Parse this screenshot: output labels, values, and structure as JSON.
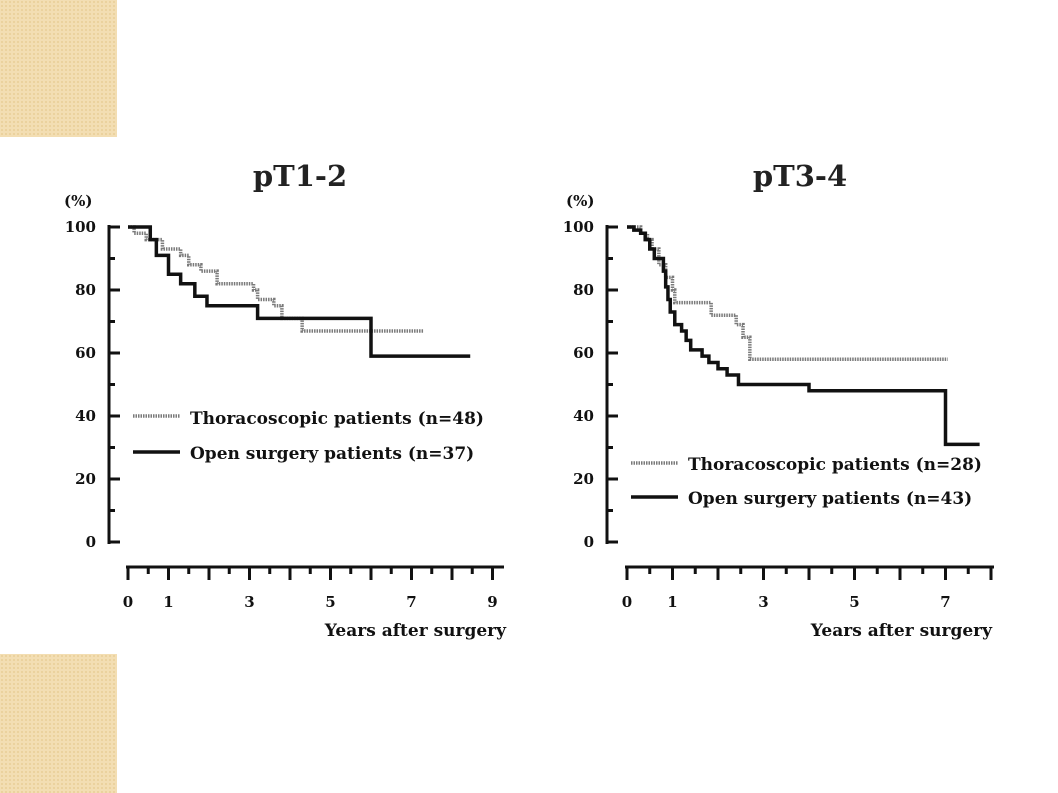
{
  "chart_data": [
    {
      "type": "line",
      "title": "pT1-2",
      "ylabel": "(%)",
      "xlabel": "Years after surgery",
      "xlim": [
        0,
        9
      ],
      "ylim": [
        0,
        100
      ],
      "xticks": [
        0,
        1,
        3,
        5,
        7,
        9
      ],
      "yticks": [
        0,
        20,
        40,
        60,
        80,
        100
      ],
      "legend_position": "center-left",
      "series": [
        {
          "name": "Thoracoscopic patients (n=48)",
          "style": "dotted-gray",
          "steps": [
            [
              0,
              100
            ],
            [
              0.15,
              98
            ],
            [
              0.45,
              96
            ],
            [
              0.85,
              93
            ],
            [
              1.3,
              91
            ],
            [
              1.5,
              88
            ],
            [
              1.8,
              86
            ],
            [
              2.2,
              82
            ],
            [
              3.1,
              80
            ],
            [
              3.2,
              77
            ],
            [
              3.6,
              75
            ],
            [
              3.8,
              71
            ],
            [
              4.3,
              67
            ],
            [
              7.3,
              67
            ]
          ]
        },
        {
          "name": "Open surgery patients (n=37)",
          "style": "solid-black",
          "steps": [
            [
              0,
              100
            ],
            [
              0.55,
              96
            ],
            [
              0.7,
              91
            ],
            [
              1.0,
              85
            ],
            [
              1.3,
              82
            ],
            [
              1.65,
              78
            ],
            [
              1.95,
              75
            ],
            [
              3.2,
              71
            ],
            [
              6.0,
              59
            ],
            [
              8.45,
              59
            ]
          ]
        }
      ]
    },
    {
      "type": "line",
      "title": "pT3-4",
      "ylabel": "(%)",
      "xlabel": "Years after surgery",
      "xlim": [
        0,
        8
      ],
      "ylim": [
        0,
        100
      ],
      "xticks": [
        0,
        1,
        3,
        5,
        7
      ],
      "yticks": [
        0,
        20,
        40,
        60,
        80,
        100
      ],
      "legend_position": "bottom-left",
      "series": [
        {
          "name": "Thoracoscopic patients (n=28)",
          "style": "dotted-gray",
          "steps": [
            [
              0,
              100
            ],
            [
              0.3,
              98
            ],
            [
              0.45,
              96
            ],
            [
              0.55,
              93
            ],
            [
              0.7,
              88
            ],
            [
              0.85,
              84
            ],
            [
              1.0,
              80
            ],
            [
              1.05,
              76
            ],
            [
              1.85,
              72
            ],
            [
              2.4,
              69
            ],
            [
              2.55,
              65
            ],
            [
              2.7,
              58
            ],
            [
              7.05,
              58
            ]
          ]
        },
        {
          "name": "Open surgery patients (n=43)",
          "style": "solid-black",
          "steps": [
            [
              0,
              100
            ],
            [
              0.15,
              99
            ],
            [
              0.3,
              98
            ],
            [
              0.4,
              96
            ],
            [
              0.5,
              93
            ],
            [
              0.6,
              90
            ],
            [
              0.8,
              86
            ],
            [
              0.85,
              81
            ],
            [
              0.9,
              77
            ],
            [
              0.95,
              73
            ],
            [
              1.05,
              69
            ],
            [
              1.2,
              67
            ],
            [
              1.3,
              64
            ],
            [
              1.4,
              61
            ],
            [
              1.65,
              59
            ],
            [
              1.8,
              57
            ],
            [
              2.0,
              55
            ],
            [
              2.2,
              53
            ],
            [
              2.45,
              50
            ],
            [
              4.0,
              48
            ],
            [
              7.0,
              31
            ],
            [
              7.75,
              31
            ]
          ]
        }
      ]
    }
  ]
}
